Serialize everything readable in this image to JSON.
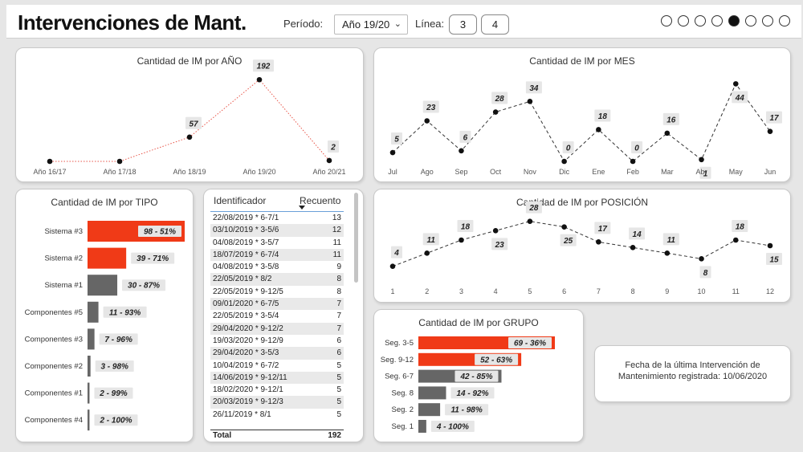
{
  "header": {
    "title": "Intervenciones de Mant.",
    "periodo_label": "Período:",
    "periodo_value": "Año 19/20",
    "linea_label": "Línea:",
    "linea_options": [
      "3",
      "4"
    ],
    "page_dots": 8,
    "active_dot": 5
  },
  "colors": {
    "red": "#f03a17",
    "gray": "#666666",
    "accent": "#f03a17"
  },
  "charts": {
    "anio": {
      "title": "Cantidad de IM por AÑO",
      "type": "line",
      "categories": [
        "Año 16/17",
        "Año 17/18",
        "Año 18/19",
        "Año 19/20",
        "Año 20/21"
      ],
      "values": [
        0,
        0,
        57,
        192,
        2
      ],
      "labels": [
        "",
        "",
        "57",
        "192",
        "2"
      ],
      "ylim": [
        0,
        200
      ]
    },
    "mes": {
      "title": "Cantidad de IM por MES",
      "type": "line",
      "categories": [
        "Jul",
        "Ago",
        "Sep",
        "Oct",
        "Nov",
        "Dic",
        "Ene",
        "Feb",
        "Mar",
        "Abr",
        "May",
        "Jun"
      ],
      "values": [
        5,
        23,
        6,
        28,
        34,
        0,
        18,
        0,
        16,
        1,
        44,
        17
      ],
      "ylim": [
        0,
        46
      ]
    },
    "posicion": {
      "title": "Cantidad de IM por POSICIÓN",
      "type": "line",
      "categories": [
        "1",
        "2",
        "3",
        "4",
        "5",
        "6",
        "7",
        "8",
        "9",
        "10",
        "11",
        "12"
      ],
      "values": [
        4,
        11,
        18,
        23,
        28,
        25,
        17,
        14,
        11,
        8,
        18,
        15
      ],
      "ylim": [
        0,
        30
      ]
    },
    "tipo": {
      "title": "Cantidad de IM por TIPO",
      "type": "bar",
      "categories": [
        "Sistema #3",
        "Sistema #2",
        "Sistema #1",
        "Componentes #5",
        "Componentes #3",
        "Componentes #2",
        "Componentes #1",
        "Componentes #4"
      ],
      "values": [
        98,
        39,
        30,
        11,
        7,
        3,
        2,
        2
      ],
      "labels": [
        "98 - 51%",
        "39 - 71%",
        "30 - 87%",
        "11 - 93%",
        "7 - 96%",
        "3 - 98%",
        "2 - 99%",
        "2 - 100%"
      ],
      "colors": [
        "red",
        "red",
        "gray",
        "gray",
        "gray",
        "gray",
        "gray",
        "gray"
      ],
      "xmax": 98
    },
    "grupo": {
      "title": "Cantidad de IM por GRUPO",
      "type": "bar",
      "categories": [
        "Seg. 3-5",
        "Seg. 9-12",
        "Seg. 6-7",
        "Seg. 8",
        "Seg. 2",
        "Seg. 1"
      ],
      "values": [
        69,
        52,
        42,
        14,
        11,
        4
      ],
      "labels": [
        "69 - 36%",
        "52 - 63%",
        "42 - 85%",
        "14 - 92%",
        "11 - 98%",
        "4 - 100%"
      ],
      "colors": [
        "red",
        "red",
        "gray",
        "gray",
        "gray",
        "gray"
      ],
      "xmax": 69
    }
  },
  "table": {
    "col1": "Identificador",
    "col2": "Recuento",
    "rows": [
      [
        "22/08/2019 * 6-7/1",
        "13"
      ],
      [
        "03/10/2019 * 3-5/6",
        "12"
      ],
      [
        "04/08/2019 * 3-5/7",
        "11"
      ],
      [
        "18/07/2019 * 6-7/4",
        "11"
      ],
      [
        "04/08/2019 * 3-5/8",
        "9"
      ],
      [
        "22/05/2019 * 8/2",
        "8"
      ],
      [
        "22/05/2019 * 9-12/5",
        "8"
      ],
      [
        "09/01/2020 * 6-7/5",
        "7"
      ],
      [
        "22/05/2019 * 3-5/4",
        "7"
      ],
      [
        "29/04/2020 * 9-12/2",
        "7"
      ],
      [
        "19/03/2020 * 9-12/9",
        "6"
      ],
      [
        "29/04/2020 * 3-5/3",
        "6"
      ],
      [
        "10/04/2019 * 6-7/2",
        "5"
      ],
      [
        "14/06/2019 * 9-12/11",
        "5"
      ],
      [
        "18/02/2020 * 9-12/1",
        "5"
      ],
      [
        "20/03/2019 * 9-12/3",
        "5"
      ],
      [
        "26/11/2019 * 8/1",
        "5"
      ]
    ],
    "total_label": "Total",
    "total_value": "192"
  },
  "fecha": {
    "line1": "Fecha de la última Intervención de",
    "line2": "Mantenimiento registrada: 10/06/2020"
  }
}
